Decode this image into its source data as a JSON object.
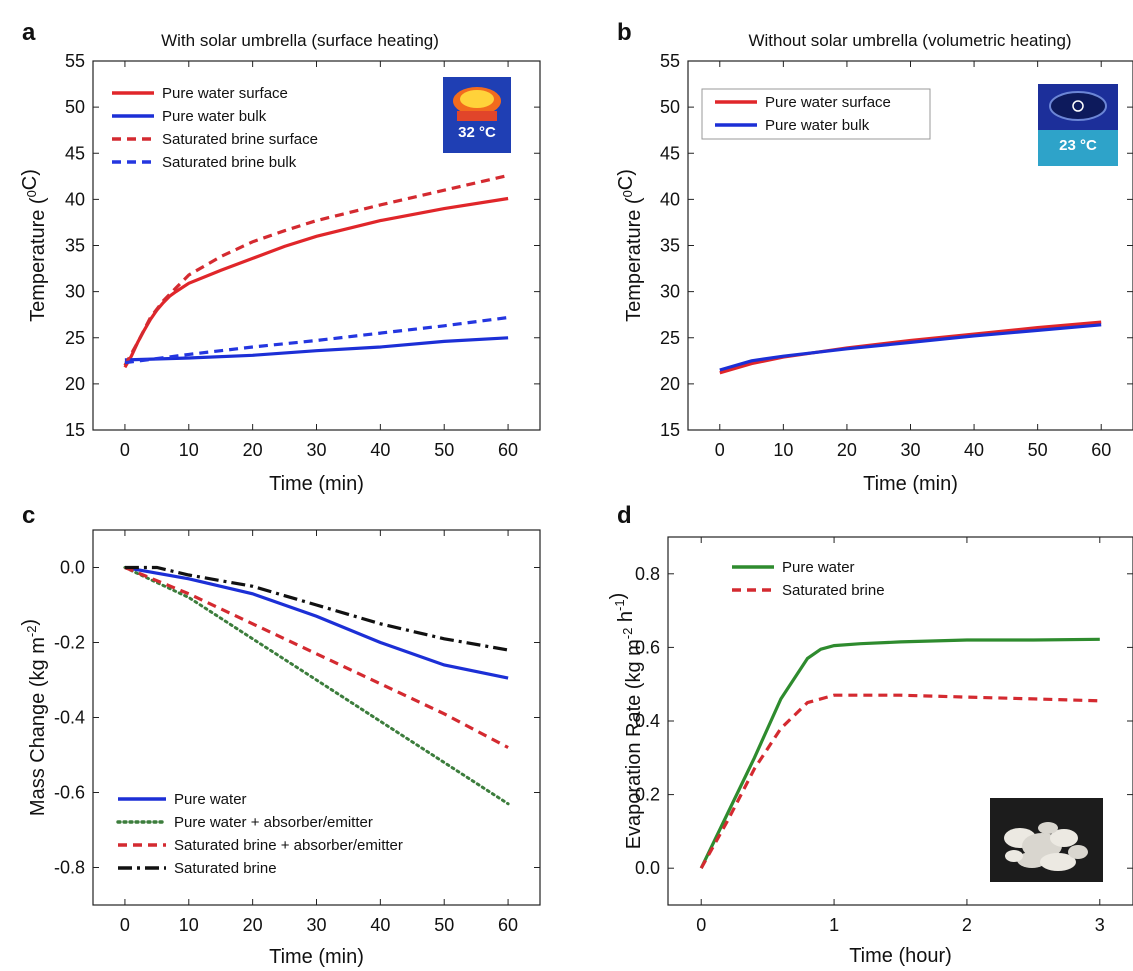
{
  "chart_data": [
    {
      "panel": "a",
      "type": "line",
      "title": "With solar umbrella (surface heating)",
      "xlabel": "Time (min)",
      "ylabel": "Temperature (°C)",
      "ylabel_main": "Temperature (",
      "ylabel_sup": "0",
      "ylabel_tail": "C)",
      "xlim": [
        -5,
        65
      ],
      "ylim": [
        15,
        55
      ],
      "xticks": [
        0,
        10,
        20,
        30,
        40,
        50,
        60
      ],
      "yticks": [
        15,
        20,
        25,
        30,
        35,
        40,
        45,
        50,
        55
      ],
      "grid": false,
      "legend_position": "top-left",
      "inset_label": "32 °C",
      "series": [
        {
          "name": "Pure water surface",
          "color": "#e0262a",
          "style": "solid",
          "x": [
            0,
            1,
            2,
            3,
            4,
            5,
            6,
            7,
            8,
            10,
            15,
            20,
            25,
            30,
            40,
            50,
            60
          ],
          "y": [
            21.8,
            23.0,
            24.5,
            25.8,
            27.0,
            28.0,
            28.8,
            29.5,
            30.0,
            30.9,
            32.3,
            33.6,
            34.9,
            36.0,
            37.7,
            39.0,
            40.1
          ]
        },
        {
          "name": "Pure water bulk",
          "color": "#1c2fd6",
          "style": "solid",
          "x": [
            0,
            10,
            20,
            30,
            40,
            50,
            60
          ],
          "y": [
            22.6,
            22.8,
            23.1,
            23.6,
            24.0,
            24.6,
            25.0
          ]
        },
        {
          "name": "Saturated brine surface",
          "color": "#d42a30",
          "style": "dashed",
          "x": [
            0,
            2,
            4,
            6,
            8,
            10,
            15,
            20,
            25,
            30,
            40,
            50,
            60
          ],
          "y": [
            22.0,
            24.5,
            27.2,
            29.0,
            30.4,
            31.8,
            33.8,
            35.4,
            36.6,
            37.7,
            39.4,
            41.0,
            42.6
          ]
        },
        {
          "name": "Saturated brine bulk",
          "color": "#2436e0",
          "style": "dashed",
          "x": [
            0,
            10,
            20,
            30,
            40,
            50,
            60
          ],
          "y": [
            22.3,
            23.2,
            24.0,
            24.7,
            25.5,
            26.3,
            27.2
          ]
        }
      ]
    },
    {
      "panel": "b",
      "type": "line",
      "title": "Without solar umbrella (volumetric heating)",
      "xlabel": "Time (min)",
      "ylabel": "Temperature (°C)",
      "ylabel_main": "Temperature (",
      "ylabel_sup": "0",
      "ylabel_tail": "C)",
      "xlim": [
        -5,
        65
      ],
      "ylim": [
        15,
        55
      ],
      "xticks": [
        0,
        10,
        20,
        30,
        40,
        50,
        60
      ],
      "yticks": [
        15,
        20,
        25,
        30,
        35,
        40,
        45,
        50,
        55
      ],
      "grid": false,
      "legend_position": "top-left",
      "inset_label": "23 °C",
      "series": [
        {
          "name": "Pure water surface",
          "color": "#e0262a",
          "style": "solid",
          "x": [
            0,
            5,
            10,
            20,
            30,
            40,
            50,
            60
          ],
          "y": [
            21.2,
            22.2,
            22.9,
            23.9,
            24.7,
            25.4,
            26.1,
            26.7
          ]
        },
        {
          "name": "Pure water bulk",
          "color": "#1c2fd6",
          "style": "solid",
          "x": [
            0,
            5,
            10,
            20,
            30,
            40,
            50,
            60
          ],
          "y": [
            21.5,
            22.5,
            23.0,
            23.8,
            24.5,
            25.2,
            25.8,
            26.4
          ]
        }
      ]
    },
    {
      "panel": "c",
      "type": "line",
      "title": "",
      "xlabel": "Time (min)",
      "ylabel": "Mass Change (kg m-2)",
      "ylabel_main": "Mass Change (kg m",
      "ylabel_sup": "-2",
      "ylabel_tail": ")",
      "xlim": [
        -5,
        65
      ],
      "ylim": [
        -0.9,
        0.1
      ],
      "xticks": [
        0,
        10,
        20,
        30,
        40,
        50,
        60
      ],
      "yticks": [
        0.0,
        -0.2,
        -0.4,
        -0.6,
        -0.8
      ],
      "ytick_labels": [
        "0.0",
        "-0.2",
        "-0.4",
        "-0.6",
        "-0.8"
      ],
      "grid": false,
      "legend_position": "bottom-left",
      "series": [
        {
          "name": "Pure water",
          "color": "#1c2fd6",
          "style": "solid",
          "x": [
            0,
            10,
            20,
            30,
            40,
            50,
            60
          ],
          "y": [
            0.0,
            -0.03,
            -0.07,
            -0.13,
            -0.2,
            -0.26,
            -0.295
          ]
        },
        {
          "name": "Pure water + absorber/emitter",
          "color": "#3c7d3c",
          "style": "dotted",
          "x": [
            0,
            10,
            20,
            30,
            40,
            50,
            60
          ],
          "y": [
            0.0,
            -0.08,
            -0.19,
            -0.3,
            -0.41,
            -0.52,
            -0.63
          ]
        },
        {
          "name": "Saturated brine + absorber/emitter",
          "color": "#d42a30",
          "style": "dashed",
          "x": [
            0,
            10,
            20,
            30,
            40,
            50,
            60
          ],
          "y": [
            0.0,
            -0.07,
            -0.15,
            -0.23,
            -0.31,
            -0.39,
            -0.48
          ]
        },
        {
          "name": "Saturated brine",
          "color": "#111111",
          "style": "dashdot",
          "x": [
            0,
            5,
            10,
            20,
            30,
            40,
            50,
            60
          ],
          "y": [
            0.0,
            0.0,
            -0.02,
            -0.05,
            -0.1,
            -0.15,
            -0.19,
            -0.22
          ]
        }
      ]
    },
    {
      "panel": "d",
      "type": "line",
      "title": "",
      "xlabel": "Time (hour)",
      "ylabel": "Evaporation Rate (kg m-2 h-1)",
      "ylabel_main": "Evaporation Rate (kg m",
      "ylabel_sup": "-2",
      "ylabel_mid": " h",
      "ylabel_sup2": "-1",
      "ylabel_tail": ")",
      "xlim": [
        -0.25,
        3.25
      ],
      "ylim": [
        -0.1,
        0.9
      ],
      "xticks": [
        0,
        1,
        2,
        3
      ],
      "yticks": [
        0.0,
        0.2,
        0.4,
        0.6,
        0.8
      ],
      "ytick_labels": [
        "0.0",
        "0.2",
        "0.4",
        "0.6",
        "0.8"
      ],
      "grid": false,
      "legend_position": "top-left",
      "series": [
        {
          "name": "Pure water",
          "color": "#2e8b2e",
          "style": "solid",
          "x": [
            0,
            0.2,
            0.4,
            0.6,
            0.8,
            0.9,
            1.0,
            1.2,
            1.5,
            2.0,
            2.5,
            3.0
          ],
          "y": [
            0.0,
            0.15,
            0.3,
            0.46,
            0.57,
            0.595,
            0.605,
            0.61,
            0.615,
            0.62,
            0.62,
            0.622
          ]
        },
        {
          "name": "Saturated brine",
          "color": "#d42a30",
          "style": "dashed",
          "x": [
            0,
            0.2,
            0.4,
            0.6,
            0.8,
            1.0,
            1.5,
            2.0,
            2.5,
            3.0
          ],
          "y": [
            0.0,
            0.13,
            0.27,
            0.38,
            0.45,
            0.47,
            0.47,
            0.465,
            0.46,
            0.455
          ]
        }
      ]
    }
  ]
}
